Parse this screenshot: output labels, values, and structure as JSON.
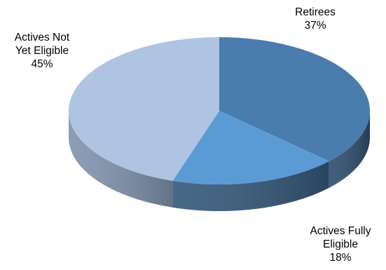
{
  "chart_data": {
    "type": "pie",
    "style": "3d",
    "start_angle_deg": 90,
    "direction": "clockwise",
    "slices": [
      {
        "name": "Retirees",
        "label_lines": [
          "Retirees"
        ],
        "percent_label": "37%",
        "value": 37,
        "color": "#4A7DAE",
        "side_color": "#2E4D6E"
      },
      {
        "name": "Actives Fully Eligible",
        "label_lines": [
          "Actives Fully",
          "Eligible"
        ],
        "percent_label": "18%",
        "value": 18,
        "color": "#5B9BD5",
        "side_color": "#33577A"
      },
      {
        "name": "Actives Not Yet Eligible",
        "label_lines": [
          "Actives Not",
          "Yet Eligible"
        ],
        "percent_label": "45%",
        "value": 45,
        "color": "#AEC4E2",
        "side_color": "#7F92AD"
      }
    ]
  }
}
